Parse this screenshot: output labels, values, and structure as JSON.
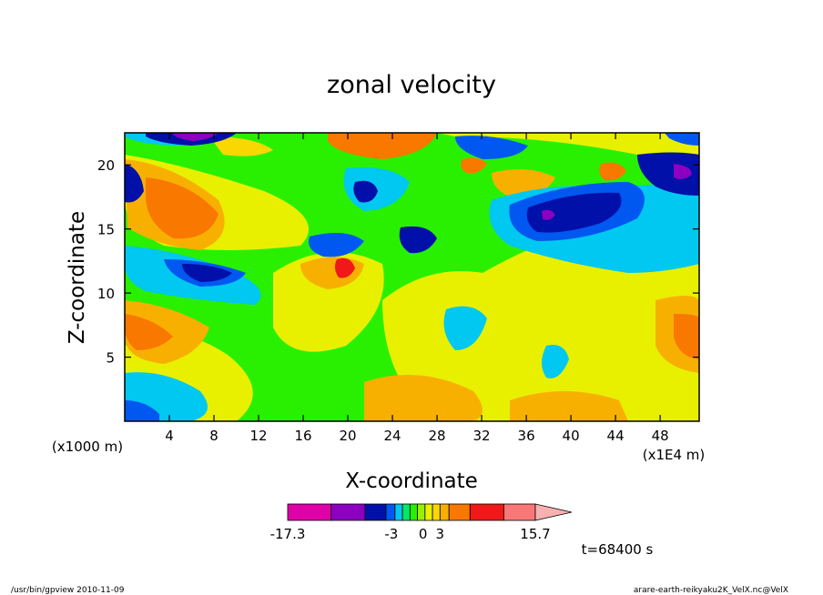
{
  "chart_data": {
    "type": "heatmap",
    "title": "zonal velocity",
    "xlabel": "X-coordinate",
    "ylabel": "Z-coordinate",
    "x_unit": "(x1E4 m)",
    "y_unit": "(x1000 m)",
    "xlim": [
      0,
      51.5
    ],
    "ylim": [
      0,
      22.5
    ],
    "x_ticks": [
      4,
      8,
      12,
      16,
      20,
      24,
      28,
      32,
      36,
      40,
      44,
      48
    ],
    "y_ticks": [
      5,
      10,
      15,
      20
    ],
    "colorbar": {
      "labels": [
        "-17.3",
        "-3",
        "0",
        "3",
        "15.7"
      ],
      "label_values": [
        -17.3,
        -3,
        0,
        3,
        15.7
      ],
      "min": -17.3,
      "max": 15.7,
      "colors": [
        "#e000a8",
        "#8c00c0",
        "#0010a8",
        "#0058f0",
        "#00c8f0",
        "#00e868",
        "#28f000",
        "#98f000",
        "#e8f000",
        "#f8d800",
        "#f8b000",
        "#f87800",
        "#f01818",
        "#f87878",
        "#f8b0b0"
      ]
    },
    "time_label": "t=68400 s"
  },
  "footer": {
    "left": "/usr/bin/gpview   2010-11-09",
    "right": "arare-earth-reikyaku2K_VelX.nc@VelX"
  }
}
